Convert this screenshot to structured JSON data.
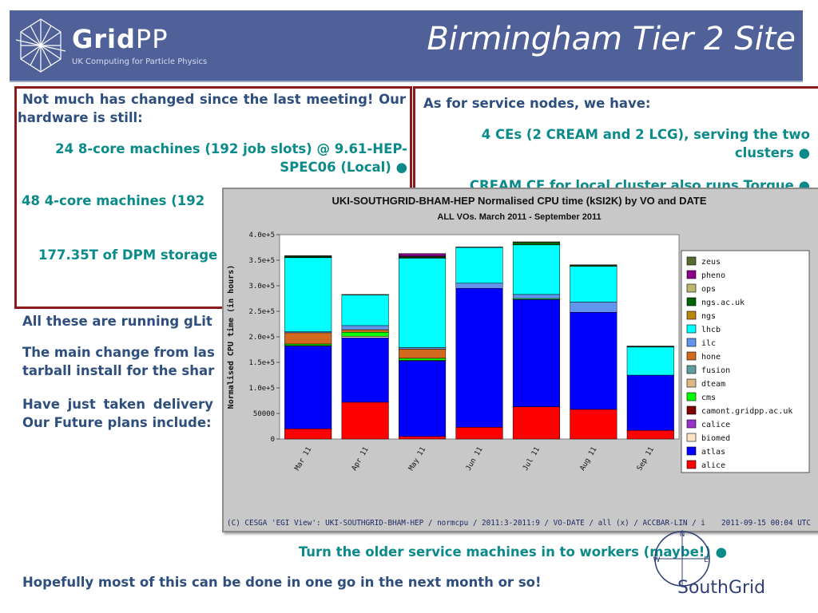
{
  "header": {
    "logo_bold": "Grid",
    "logo_thin": "PP",
    "logo_tagline": "UK Computing for Particle Physics",
    "title": "Birmingham Tier 2 Site"
  },
  "left_box": {
    "intro": "Not much has changed since the last meeting! Our hardware is still:",
    "items": [
      "24 8-core machines (192 job slots) @ 9.61-HEP-SPEC06 (Local)  ●",
      "48 4-core machines (192",
      "177.35T of DPM storage"
    ]
  },
  "right_box": {
    "intro": "As for service nodes, we have:",
    "items": [
      "4 CEs (2 CREAM and 2 LCG), serving the two clusters  ●",
      "CREAM CE for local cluster also runs Torque  ●"
    ]
  },
  "body_text": {
    "p1": "All these are running gLit",
    "p2_line1": "The main change from las",
    "p2_line2": "tarball install for the shar",
    "p3_line1": "Have just taken delivery",
    "p3_line2": "Our Future plans include:",
    "plan": "Turn the older service machines in to workers (maybe!)  ●",
    "closing": "Hopefully most of this can be done in one go in the next month or so!"
  },
  "chart_data": {
    "type": "bar",
    "title": "UKI-SOUTHGRID-BHAM-HEP  Normalised CPU time (kSI2K) by VO and DATE",
    "subtitle": "ALL VOs. March 2011 - September 2011",
    "ylabel": "Normalised CPU time (in hours)",
    "xlabel": "",
    "ylim": [
      0,
      400000
    ],
    "yticks": [
      0,
      50000,
      100000,
      150000,
      200000,
      250000,
      300000,
      350000,
      400000
    ],
    "ytick_labels": [
      "0",
      "50000",
      "1.0e+5",
      "1.5e+5",
      "2.0e+5",
      "2.5e+5",
      "3.0e+5",
      "3.5e+5",
      "4.0e+5"
    ],
    "categories": [
      "Mar 11",
      "Apr 11",
      "May 11",
      "Jun 11",
      "Jul 11",
      "Aug 11",
      "Sep 11"
    ],
    "stacked": true,
    "legend_position": "right",
    "series": [
      {
        "name": "alice",
        "color": "#ff0000",
        "values": [
          20000,
          72000,
          5000,
          23000,
          63000,
          58000,
          17000
        ]
      },
      {
        "name": "atlas",
        "color": "#0000ff",
        "values": [
          162000,
          126000,
          148000,
          272000,
          210000,
          190000,
          108000
        ]
      },
      {
        "name": "biomed",
        "color": "#ffe4c4",
        "values": [
          1000,
          3000,
          1000,
          0,
          0,
          0,
          0
        ]
      },
      {
        "name": "calice",
        "color": "#9932cc",
        "values": [
          0,
          0,
          0,
          0,
          0,
          0,
          0
        ]
      },
      {
        "name": "camont.gridpp.ac.uk",
        "color": "#800000",
        "values": [
          0,
          0,
          0,
          0,
          0,
          0,
          0
        ]
      },
      {
        "name": "cms",
        "color": "#00ff00",
        "values": [
          3000,
          8000,
          4000,
          0,
          2000,
          0,
          0
        ]
      },
      {
        "name": "dteam",
        "color": "#deb887",
        "values": [
          0,
          0,
          0,
          0,
          0,
          0,
          0
        ]
      },
      {
        "name": "fusion",
        "color": "#5f9ea0",
        "values": [
          0,
          0,
          0,
          0,
          0,
          0,
          0
        ]
      },
      {
        "name": "hone",
        "color": "#d2691e",
        "values": [
          22000,
          5000,
          18000,
          0,
          0,
          0,
          0
        ]
      },
      {
        "name": "ilc",
        "color": "#6495ed",
        "values": [
          2000,
          8000,
          3000,
          10000,
          8000,
          20000,
          0
        ]
      },
      {
        "name": "lhcb",
        "color": "#00ffff",
        "values": [
          145000,
          60000,
          175000,
          70000,
          97000,
          70000,
          55000
        ]
      },
      {
        "name": "ngs",
        "color": "#b8860b",
        "values": [
          1000,
          0,
          1000,
          0,
          0,
          0,
          0
        ]
      },
      {
        "name": "ngs.ac.uk",
        "color": "#006400",
        "values": [
          2000,
          0,
          2000,
          0,
          5000,
          2000,
          1000
        ]
      },
      {
        "name": "ops",
        "color": "#bdb76b",
        "values": [
          1000,
          1000,
          1000,
          1000,
          1000,
          1000,
          1000
        ]
      },
      {
        "name": "pheno",
        "color": "#8b008b",
        "values": [
          0,
          0,
          5000,
          0,
          0,
          0,
          0
        ]
      },
      {
        "name": "zeus",
        "color": "#556b2f",
        "values": [
          0,
          0,
          0,
          0,
          0,
          0,
          0
        ]
      }
    ],
    "footer_left": "(C) CESGA 'EGI View': UKI-SOUTHGRID-BHAM-HEP / normcpu / 2011:3-2011:9 / VO-DATE / all (x) / ACCBAR-LIN / i",
    "footer_right": "2011-09-15 00:04 UTC"
  },
  "southgrid": {
    "label": "SouthGrid",
    "compass_n": "N",
    "compass_e": "E",
    "compass_w": "W"
  }
}
